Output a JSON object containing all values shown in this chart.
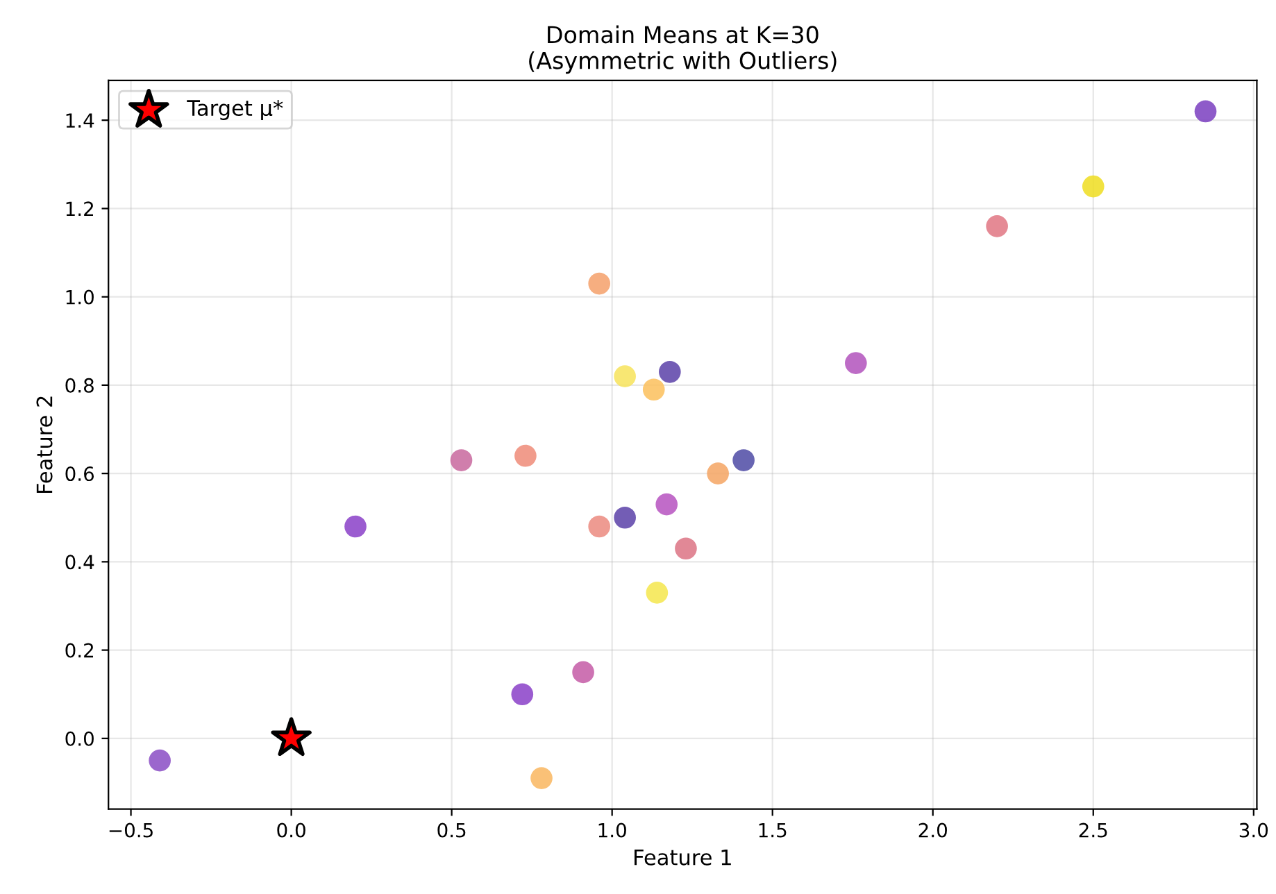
{
  "chart_data": {
    "type": "scatter",
    "title": "Domain Means at K=30\n(Asymmetric with Outliers)",
    "xlabel": "Feature 1",
    "ylabel": "Feature 2",
    "xlim": [
      -0.57,
      3.01
    ],
    "ylim": [
      -0.16,
      1.49
    ],
    "xticks": [
      {
        "value": -0.5,
        "label": "−0.5"
      },
      {
        "value": 0,
        "label": "0.0"
      },
      {
        "value": 0.5,
        "label": "0.5"
      },
      {
        "value": 1,
        "label": "1.0"
      },
      {
        "value": 1.5,
        "label": "1.5"
      },
      {
        "value": 2,
        "label": "2.0"
      },
      {
        "value": 2.5,
        "label": "2.5"
      },
      {
        "value": 3,
        "label": "3.0"
      }
    ],
    "yticks": [
      {
        "value": 0,
        "label": "0.0"
      },
      {
        "value": 0.2,
        "label": "0.2"
      },
      {
        "value": 0.4,
        "label": "0.4"
      },
      {
        "value": 0.6,
        "label": "0.6"
      },
      {
        "value": 0.8,
        "label": "0.8"
      },
      {
        "value": 1,
        "label": "1.0"
      },
      {
        "value": 1.2,
        "label": "1.2"
      },
      {
        "value": 1.4,
        "label": "1.4"
      }
    ],
    "grid": true,
    "legend": "top left",
    "series": [
      {
        "marker": "circle",
        "x": [
          -0.41,
          0.2,
          0.53,
          0.73,
          0.72,
          0.91,
          0.78,
          0.96,
          0.96,
          1.04,
          1.04,
          1.13,
          1.18,
          1.17,
          1.23,
          1.14,
          1.33,
          1.41,
          1.76,
          2.2,
          2.5,
          2.85
        ],
        "values": [
          -0.05,
          0.48,
          0.63,
          0.64,
          0.1,
          0.15,
          -0.09,
          1.03,
          0.48,
          0.5,
          0.82,
          0.79,
          0.83,
          0.53,
          0.43,
          0.33,
          0.6,
          0.63,
          0.85,
          1.16,
          1.25,
          1.42
        ],
        "colors": [
          "#8a4cc4",
          "#8a3fc8",
          "#c8679e",
          "#ee8b78",
          "#8a3fc8",
          "#c45aa6",
          "#f9b65f",
          "#f5a06a",
          "#eb8a7f",
          "#5b41a8",
          "#f7e35a",
          "#fbc05c",
          "#5b41a8",
          "#b652c0",
          "#dc7384",
          "#f4e64c",
          "#f5a463",
          "#4d4aa4",
          "#b252bc",
          "#e07582",
          "#eedd20",
          "#7a3ec0"
        ]
      },
      {
        "marker": "star",
        "name": "Target μ*",
        "color": "#ff0000",
        "x": [
          0
        ],
        "values": [
          0
        ]
      }
    ]
  }
}
